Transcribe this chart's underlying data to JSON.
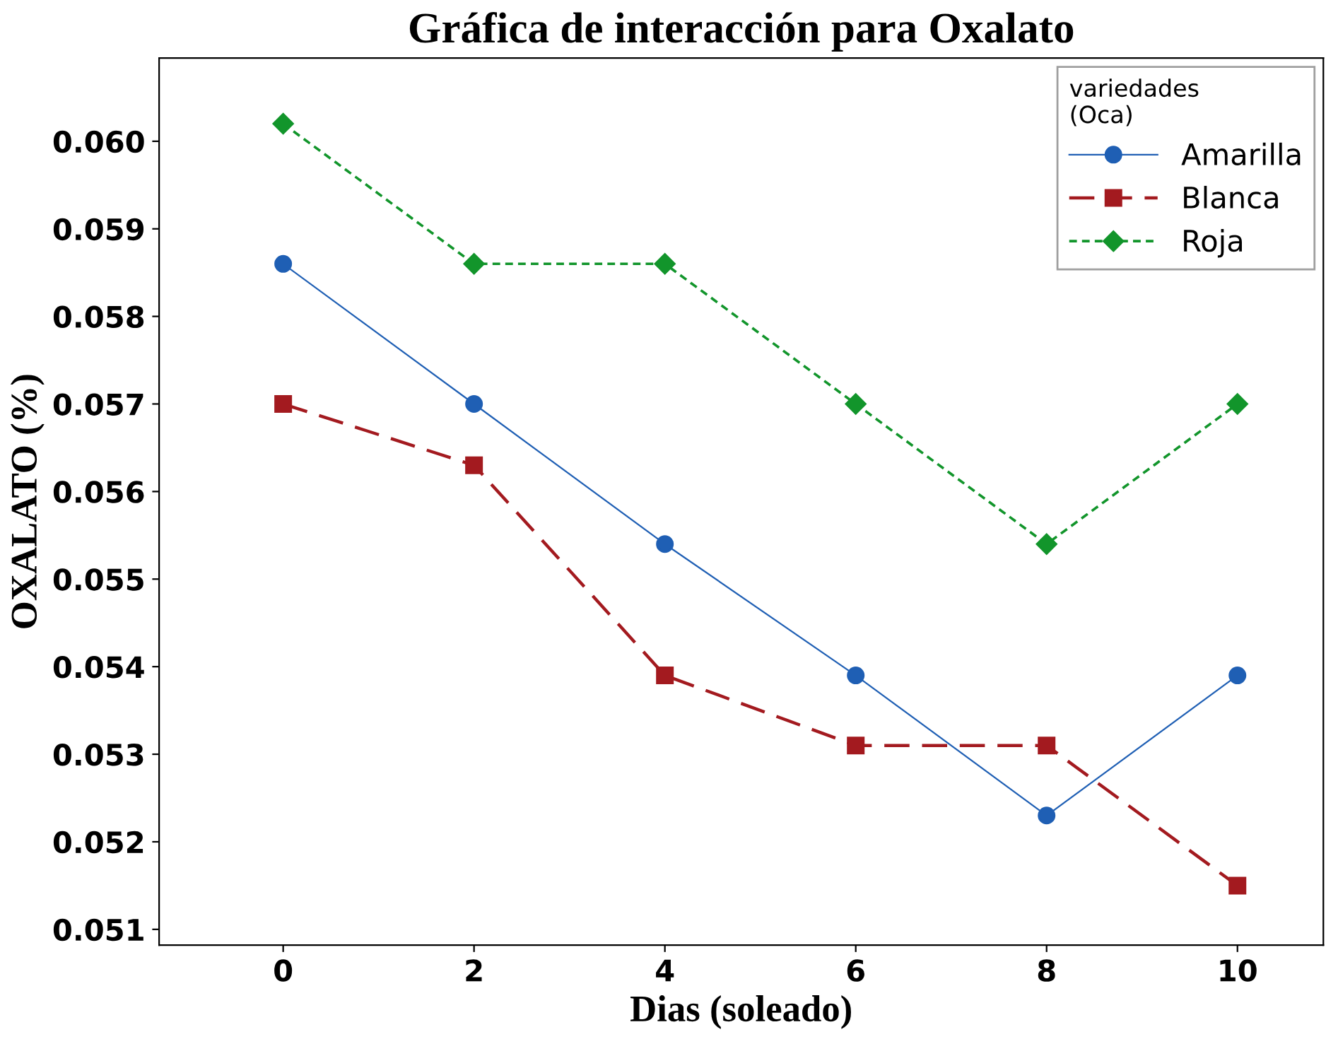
{
  "chart_data": {
    "type": "line",
    "title": "Gráfica de interacción para Oxalato",
    "xlabel": "Dias (soleado)",
    "ylabel": "OXALATO (%)",
    "legend_title": "variedades\n(Oca)",
    "x": [
      0,
      2,
      4,
      6,
      8,
      10
    ],
    "series": [
      {
        "name": "Amarilla",
        "color": "#1f5fb4",
        "marker": "circle",
        "line_style": "solid",
        "values": [
          0.0586,
          0.057,
          0.0554,
          0.0539,
          0.0523,
          0.0539
        ]
      },
      {
        "name": "Blanca",
        "color": "#a31a1f",
        "marker": "square",
        "line_style": "dashed",
        "values": [
          0.057,
          0.0563,
          0.0539,
          0.0531,
          0.0531,
          0.0515
        ]
      },
      {
        "name": "Roja",
        "color": "#12952b",
        "marker": "diamond",
        "line_style": "dotted",
        "values": [
          0.0602,
          0.0586,
          0.0586,
          0.057,
          0.0554,
          0.057
        ]
      }
    ],
    "xlim": [
      -1.3,
      10.9
    ],
    "ylim": [
      0.05082,
      0.06095
    ],
    "xticks": [
      0,
      2,
      4,
      6,
      8,
      10
    ],
    "yticks": [
      {
        "value": 0.051,
        "label": "0.051"
      },
      {
        "value": 0.052,
        "label": "0.052"
      },
      {
        "value": 0.053,
        "label": "0.053"
      },
      {
        "value": 0.054,
        "label": "0.054"
      },
      {
        "value": 0.055,
        "label": "0.055"
      },
      {
        "value": 0.056,
        "label": "0.056"
      },
      {
        "value": 0.057,
        "label": "0.057"
      },
      {
        "value": 0.058,
        "label": "0.058"
      },
      {
        "value": 0.059,
        "label": "0.059"
      },
      {
        "value": 0.06,
        "label": "0.060"
      }
    ],
    "grid": false,
    "legend": "top right"
  }
}
